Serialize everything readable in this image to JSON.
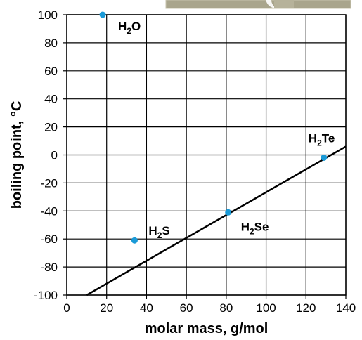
{
  "chart_data": {
    "type": "scatter",
    "xlabel": "molar mass, g/mol",
    "ylabel": "boiling point, °C",
    "xlim": [
      0,
      140
    ],
    "ylim": [
      -100,
      100
    ],
    "xticks": [
      0,
      20,
      40,
      60,
      80,
      100,
      120,
      140
    ],
    "yticks": [
      -100,
      -80,
      -60,
      -40,
      -20,
      0,
      20,
      40,
      60,
      80,
      100
    ],
    "grid": true,
    "point_color": "#1a9ad7",
    "points": [
      {
        "label_main": "H",
        "label_sub": "2",
        "label_rest": "O",
        "x": 18,
        "y": 100
      },
      {
        "label_main": "H",
        "label_sub": "2",
        "label_rest": "S",
        "x": 34,
        "y": -61
      },
      {
        "label_main": "H",
        "label_sub": "2",
        "label_rest": "Se",
        "x": 81,
        "y": -41
      },
      {
        "label_main": "H",
        "label_sub": "2",
        "label_rest": "Te",
        "x": 129,
        "y": -2
      }
    ],
    "trendline": {
      "x": [
        10,
        140
      ],
      "y": [
        -100,
        6
      ]
    },
    "inset_image": "mug-illustration"
  }
}
